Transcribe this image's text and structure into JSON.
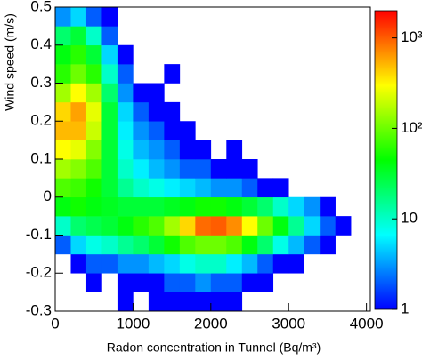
{
  "chart_data": {
    "type": "heatmap",
    "x_label": "Radon concentration in Tunnel (Bq/m³)",
    "y_label": "Wind speed (m/s)",
    "xlim": [
      0,
      4050
    ],
    "ylim": [
      -0.3,
      0.5
    ],
    "xticks": [
      0,
      1000,
      2000,
      3000,
      4000
    ],
    "yticks": [
      -0.3,
      -0.2,
      -0.1,
      0,
      0.1,
      0.2,
      0.3,
      0.4,
      0.5
    ],
    "xbins": [
      0,
      200,
      400,
      600,
      800,
      1000,
      1200,
      1400,
      1600,
      1800,
      2000,
      2200,
      2400,
      2600,
      2800,
      3000,
      3200,
      3400,
      3600,
      3800,
      4000
    ],
    "ybins": [
      -0.3,
      -0.25,
      -0.2,
      -0.15,
      -0.1,
      -0.05,
      0,
      0.05,
      0.1,
      0.15,
      0.2,
      0.25,
      0.3,
      0.35,
      0.4,
      0.45,
      0.5
    ],
    "z": [
      [
        null,
        null,
        null,
        null,
        1,
        null,
        1,
        1,
        1,
        1,
        1,
        1,
        null,
        null,
        null,
        null,
        null,
        null,
        null,
        null
      ],
      [
        null,
        null,
        1,
        null,
        1,
        1,
        1,
        2,
        2,
        3,
        2,
        2,
        1,
        1,
        null,
        null,
        null,
        null,
        null,
        null
      ],
      [
        null,
        1,
        2,
        2,
        3,
        3,
        4,
        5,
        8,
        10,
        10,
        6,
        4,
        2,
        1,
        1,
        null,
        null,
        null,
        null
      ],
      [
        2,
        5,
        8,
        10,
        15,
        20,
        30,
        50,
        80,
        100,
        100,
        80,
        40,
        20,
        8,
        4,
        2,
        1,
        null,
        null
      ],
      [
        10,
        20,
        25,
        30,
        40,
        60,
        80,
        150,
        400,
        900,
        1000,
        700,
        300,
        100,
        40,
        15,
        5,
        2,
        1,
        null
      ],
      [
        40,
        50,
        40,
        35,
        30,
        30,
        30,
        35,
        40,
        50,
        50,
        40,
        30,
        20,
        10,
        5,
        3,
        1,
        null,
        null
      ],
      [
        80,
        70,
        50,
        30,
        15,
        10,
        8,
        6,
        5,
        4,
        3,
        3,
        2,
        1,
        1,
        null,
        null,
        null,
        null,
        null
      ],
      [
        150,
        120,
        80,
        30,
        10,
        6,
        4,
        3,
        2,
        2,
        1,
        1,
        1,
        null,
        null,
        null,
        null,
        null,
        null,
        null
      ],
      [
        300,
        250,
        120,
        30,
        8,
        4,
        3,
        2,
        1,
        1,
        null,
        1,
        null,
        null,
        null,
        null,
        null,
        null,
        null,
        null
      ],
      [
        500,
        500,
        200,
        30,
        6,
        3,
        2,
        1,
        1,
        null,
        null,
        null,
        null,
        null,
        null,
        null,
        null,
        null,
        null,
        null
      ],
      [
        400,
        600,
        250,
        30,
        5,
        2,
        1,
        1,
        null,
        null,
        null,
        null,
        null,
        null,
        null,
        null,
        null,
        null,
        null,
        null
      ],
      [
        150,
        300,
        150,
        20,
        3,
        1,
        1,
        null,
        null,
        null,
        null,
        null,
        null,
        null,
        null,
        null,
        null,
        null,
        null,
        null
      ],
      [
        60,
        100,
        60,
        10,
        2,
        null,
        null,
        1,
        null,
        null,
        null,
        null,
        null,
        null,
        null,
        null,
        null,
        null,
        null,
        null
      ],
      [
        40,
        60,
        30,
        5,
        1,
        null,
        null,
        null,
        null,
        null,
        null,
        null,
        null,
        null,
        null,
        null,
        null,
        null,
        null,
        null
      ],
      [
        20,
        30,
        10,
        2,
        null,
        null,
        null,
        null,
        null,
        null,
        null,
        null,
        null,
        null,
        null,
        null,
        null,
        null,
        null,
        null
      ],
      [
        3,
        5,
        2,
        1,
        null,
        null,
        null,
        null,
        null,
        null,
        null,
        null,
        null,
        null,
        null,
        null,
        null,
        null,
        null,
        null
      ]
    ],
    "zlim": [
      1,
      2000
    ],
    "zlog": true,
    "zticks": [
      1,
      10,
      {
        "value": 100,
        "label": "10²"
      },
      {
        "value": 1000,
        "label": "10³"
      }
    ],
    "colors": [
      "#0000ff",
      "#00ffff",
      "#00ff00",
      "#ffff00",
      "#ff0000"
    ]
  }
}
